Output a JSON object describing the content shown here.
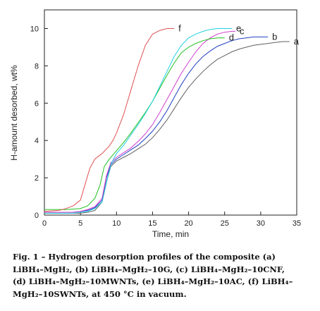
{
  "chart_data": {
    "type": "line",
    "title": "",
    "xlabel": "Time, min",
    "ylabel": "H-amount desorbed, wt%",
    "xlim": [
      0,
      35
    ],
    "ylim": [
      0,
      11
    ],
    "xticks": [
      0,
      5,
      10,
      15,
      20,
      25,
      30,
      35
    ],
    "yticks": [
      0,
      2,
      4,
      6,
      8,
      10
    ],
    "grid": false,
    "legend": "inline labels at line ends",
    "series": [
      {
        "label": "a",
        "color": "#606060",
        "x": [
          0,
          4,
          5,
          6,
          7,
          8,
          8.7,
          9.2,
          10,
          11,
          12,
          13,
          14,
          15,
          16,
          17,
          18,
          19,
          20,
          21,
          22,
          23,
          24,
          25,
          26,
          27,
          28,
          29,
          30,
          31,
          32,
          33,
          34
        ],
        "y": [
          0.1,
          0.1,
          0.1,
          0.15,
          0.25,
          0.7,
          1.9,
          2.6,
          2.9,
          3.1,
          3.3,
          3.55,
          3.8,
          4.15,
          4.6,
          5.1,
          5.7,
          6.3,
          6.85,
          7.3,
          7.7,
          8.05,
          8.35,
          8.55,
          8.75,
          8.9,
          9.0,
          9.1,
          9.15,
          9.2,
          9.25,
          9.3,
          9.3
        ]
      },
      {
        "label": "b",
        "color": "#2040c0",
        "x": [
          0,
          4,
          5,
          6,
          7,
          8,
          8.6,
          9.2,
          10,
          11,
          12,
          13,
          14,
          15,
          16,
          17,
          18,
          19,
          20,
          21,
          22,
          23,
          24,
          25,
          26,
          27,
          28,
          29,
          30,
          31
        ],
        "y": [
          0.15,
          0.15,
          0.2,
          0.25,
          0.4,
          0.8,
          2.0,
          2.7,
          3.0,
          3.25,
          3.5,
          3.75,
          4.1,
          4.5,
          5.0,
          5.6,
          6.3,
          7.0,
          7.6,
          8.1,
          8.5,
          8.8,
          9.05,
          9.2,
          9.35,
          9.45,
          9.5,
          9.55,
          9.55,
          9.55
        ]
      },
      {
        "label": "c",
        "color": "#d040d0",
        "x": [
          0,
          4,
          5,
          6,
          7,
          8,
          8.6,
          9.2,
          10,
          11,
          12,
          13,
          14,
          15,
          16,
          17,
          18,
          19,
          20,
          21,
          22,
          23,
          24,
          25,
          26,
          26.5
        ],
        "y": [
          0.15,
          0.15,
          0.2,
          0.3,
          0.45,
          0.9,
          2.1,
          2.8,
          3.1,
          3.35,
          3.6,
          3.95,
          4.35,
          4.85,
          5.5,
          6.2,
          6.9,
          7.6,
          8.2,
          8.75,
          9.2,
          9.5,
          9.7,
          9.8,
          9.85,
          9.85
        ]
      },
      {
        "label": "d",
        "color": "#20c020",
        "x": [
          0,
          3,
          5,
          6,
          7,
          7.7,
          8.3,
          9,
          10,
          11,
          12,
          13,
          14,
          15,
          16,
          17,
          18,
          19,
          20,
          21,
          22,
          23,
          24,
          25
        ],
        "y": [
          0.3,
          0.3,
          0.35,
          0.5,
          0.9,
          1.6,
          2.6,
          3.0,
          3.45,
          3.9,
          4.4,
          4.95,
          5.5,
          6.1,
          6.8,
          7.5,
          8.15,
          8.7,
          9.0,
          9.2,
          9.35,
          9.45,
          9.5,
          9.5
        ]
      },
      {
        "label": "e",
        "color": "#20d0e0",
        "x": [
          0,
          4,
          5,
          6,
          7,
          8,
          8.7,
          9.3,
          10,
          11,
          12,
          13,
          14,
          15,
          16,
          17,
          18,
          19,
          20,
          21,
          22,
          23,
          24,
          25,
          26
        ],
        "y": [
          0.1,
          0.1,
          0.15,
          0.2,
          0.35,
          0.7,
          1.9,
          2.8,
          3.3,
          3.75,
          4.3,
          4.85,
          5.45,
          6.1,
          6.9,
          7.7,
          8.5,
          9.1,
          9.5,
          9.7,
          9.85,
          9.95,
          10.0,
          10.0,
          10.0
        ]
      },
      {
        "label": "f",
        "color": "#e05050",
        "x": [
          0,
          2,
          3,
          4,
          5,
          5.6,
          6.3,
          7,
          8,
          9,
          9.5,
          10,
          11,
          12,
          13,
          14,
          15,
          16,
          17,
          18
        ],
        "y": [
          0.2,
          0.25,
          0.35,
          0.5,
          0.8,
          1.6,
          2.5,
          3.0,
          3.3,
          3.7,
          4.0,
          4.4,
          5.4,
          6.7,
          8.0,
          9.1,
          9.7,
          9.9,
          10.0,
          10.0
        ]
      }
    ]
  },
  "caption": {
    "fig_label": "Fig. 1 – Hydrogen desorption profiles of the composite (a)",
    "line2": "LiBH₄–MgH₂, (b) LiBH₄–MgH₂–10G, (c) LiBH₄–MgH₂–10CNF,",
    "line3": "(d) LiBH₄–MgH₂–10MWNTs, (e) LiBH₄–MgH₂–10AC, (f) LiBH₄–",
    "line4": "MgH₂–10SWNTs, at 450 °C in vacuum."
  }
}
